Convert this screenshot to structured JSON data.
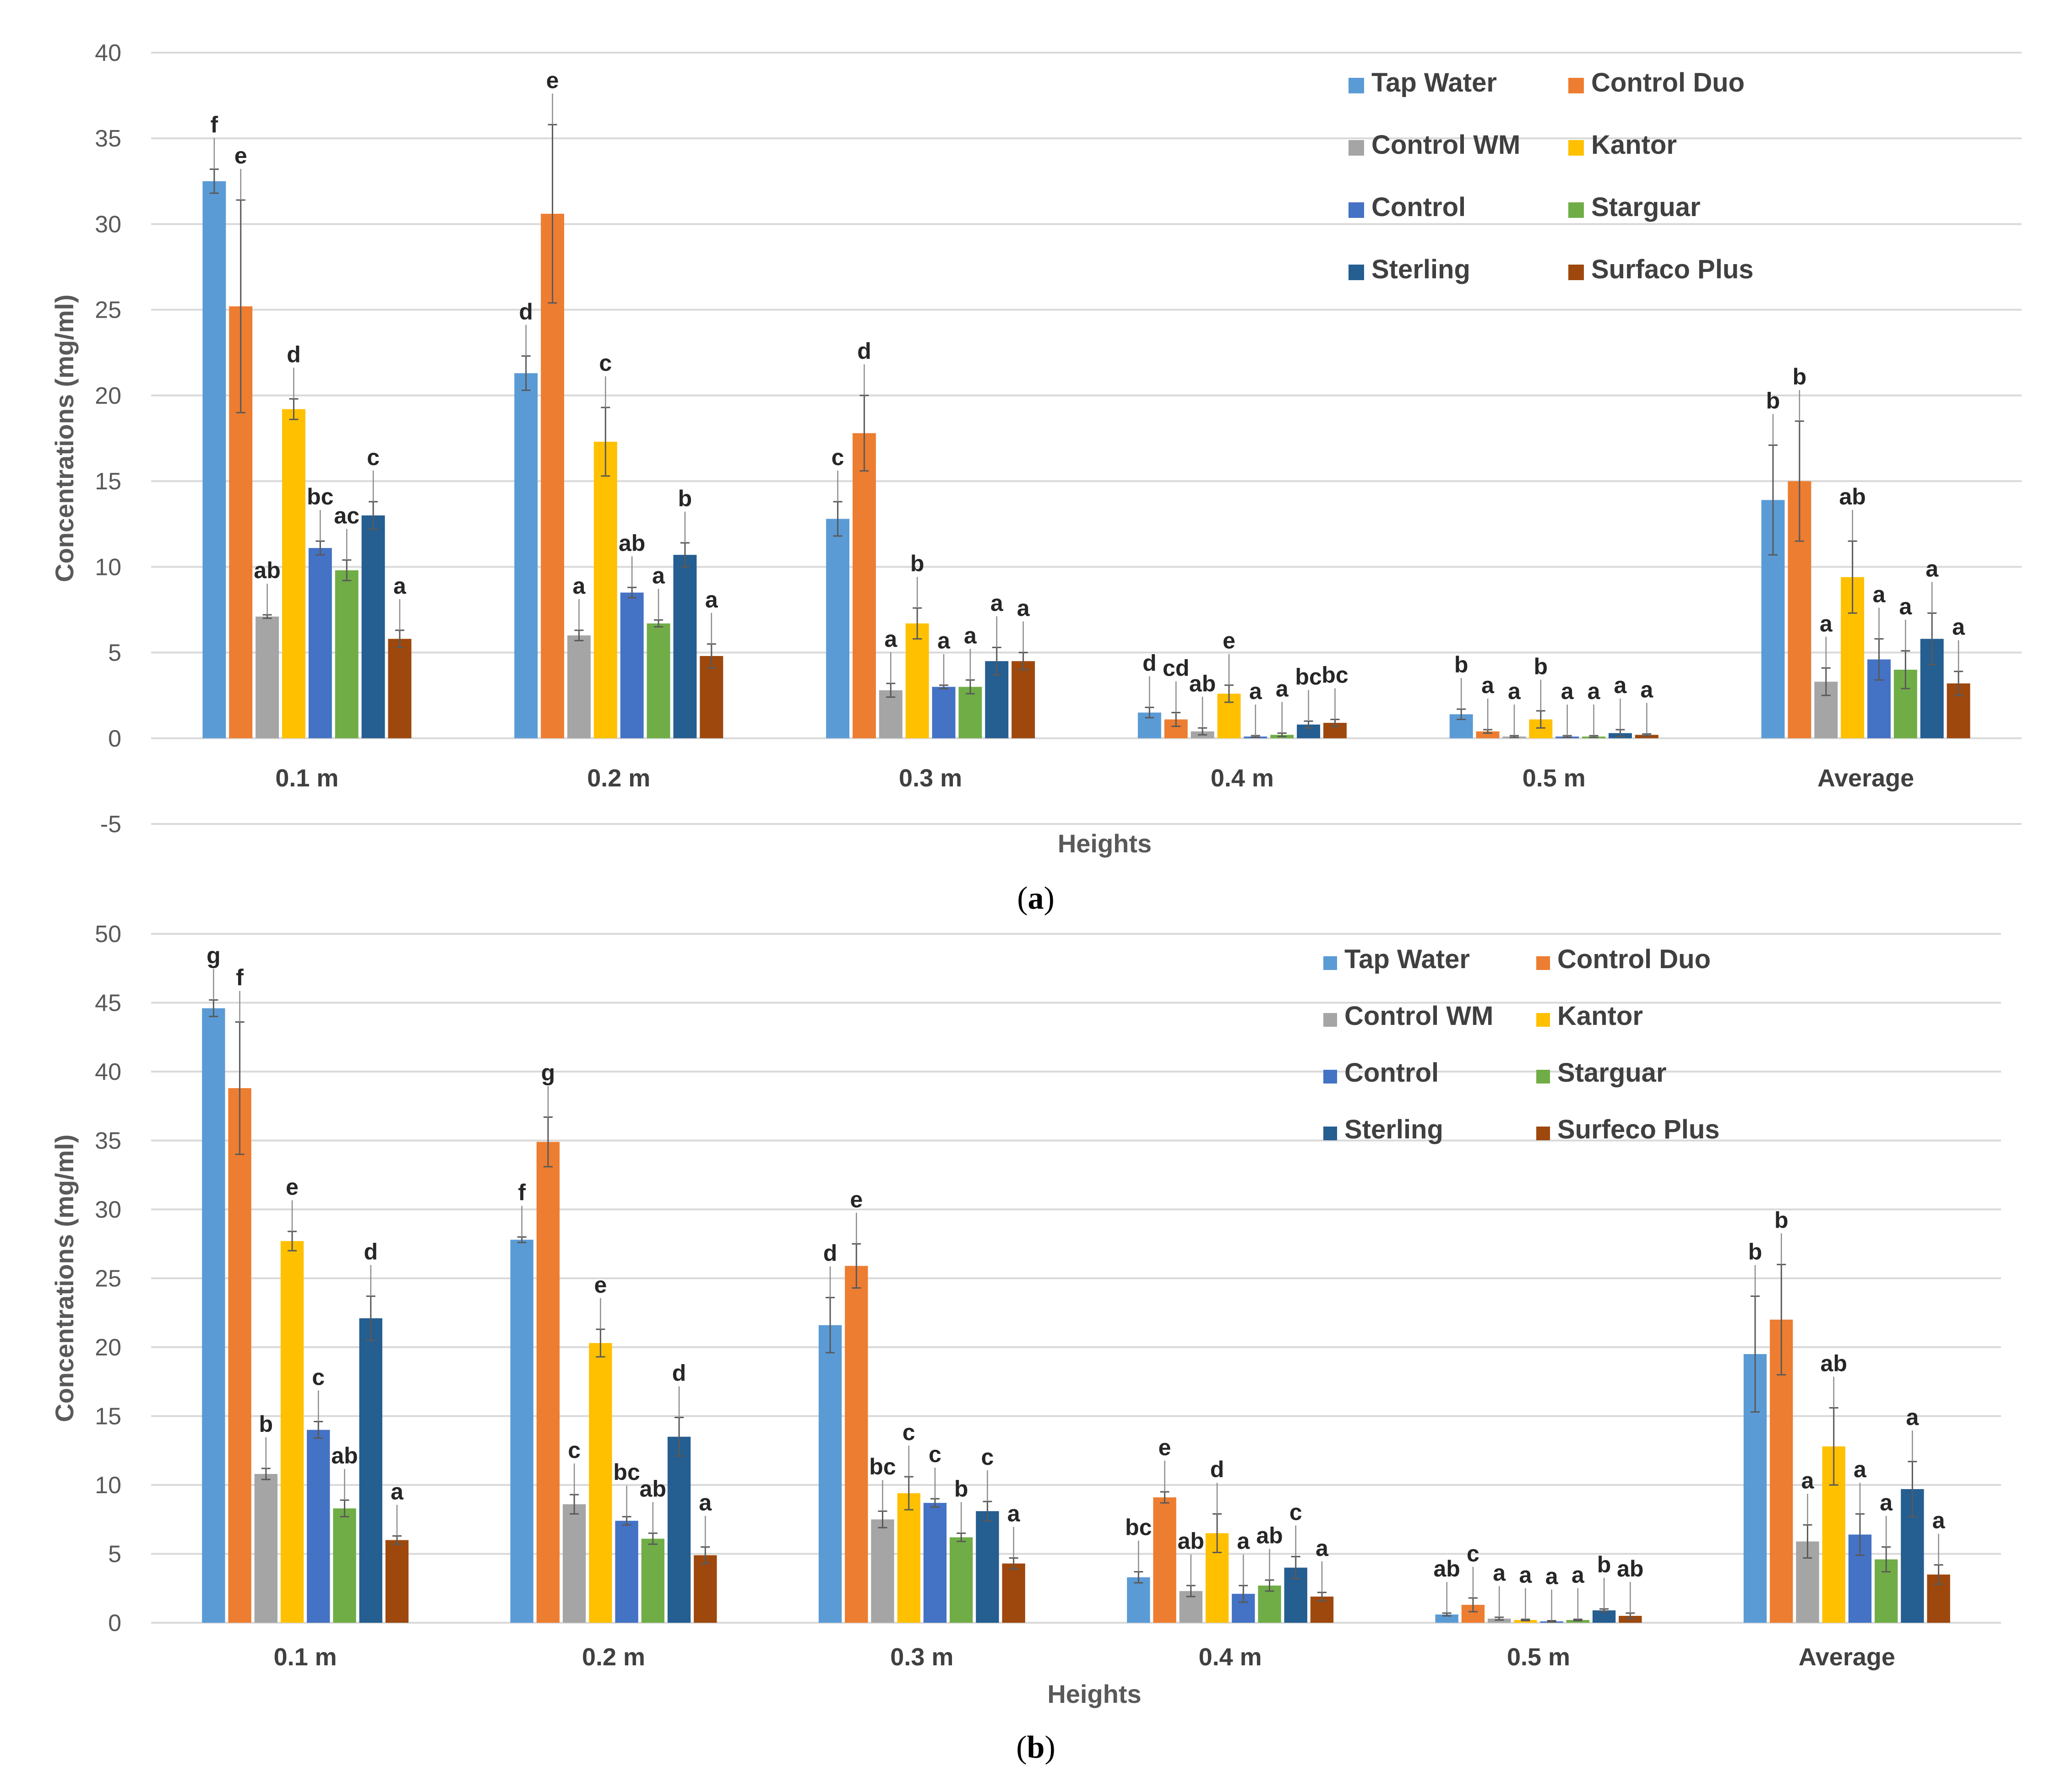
{
  "chart_data": [
    {
      "type": "bar",
      "panel_caption": "(a)",
      "panel_letter": "a",
      "title": "",
      "xlabel": "Heights",
      "ylabel": "Concentrations  (mg/ml)",
      "ylim": [
        -5,
        40
      ],
      "yticks": [
        -5,
        0,
        5,
        10,
        15,
        20,
        25,
        30,
        35,
        40
      ],
      "grid": true,
      "legend_position": "top-right",
      "categories": [
        "0.1 m",
        "0.2 m",
        "0.3 m",
        "0.4 m",
        "0.5 m",
        "Average"
      ],
      "series": [
        {
          "name": "Tap Water",
          "color": "#5b9bd5",
          "values": [
            32.5,
            21.3,
            12.8,
            1.5,
            1.4,
            13.9
          ],
          "errors": [
            0.7,
            1.0,
            1.0,
            0.3,
            0.3,
            3.2
          ],
          "labels": [
            "f",
            "d",
            "c",
            "d",
            "b",
            "b"
          ]
        },
        {
          "name": "Control Duo",
          "color": "#ed7d31",
          "values": [
            25.2,
            30.6,
            17.8,
            1.1,
            0.4,
            15.0
          ],
          "errors": [
            6.2,
            5.2,
            2.2,
            0.4,
            0.1,
            3.5
          ],
          "labels": [
            "e",
            "e",
            "d",
            "cd",
            "a",
            "b"
          ]
        },
        {
          "name": "Control WM",
          "color": "#a5a5a5",
          "values": [
            7.1,
            6.0,
            2.8,
            0.4,
            0.1,
            3.3
          ],
          "errors": [
            0.1,
            0.3,
            0.4,
            0.2,
            0.05,
            0.8
          ],
          "labels": [
            "ab",
            "a",
            "a",
            "ab",
            "a",
            "a"
          ]
        },
        {
          "name": "Kantor",
          "color": "#ffc000",
          "values": [
            19.2,
            17.3,
            6.7,
            2.6,
            1.1,
            9.4
          ],
          "errors": [
            0.6,
            2.0,
            0.9,
            0.5,
            0.5,
            2.1
          ],
          "labels": [
            "d",
            "c",
            "b",
            "e",
            "b",
            "ab"
          ]
        },
        {
          "name": "Control",
          "color": "#4472c4",
          "values": [
            11.1,
            8.5,
            3.0,
            0.1,
            0.1,
            4.6
          ],
          "errors": [
            0.4,
            0.3,
            0.1,
            0.05,
            0.05,
            1.2
          ],
          "labels": [
            "bc",
            "ab",
            "a",
            "a",
            "a",
            "a"
          ]
        },
        {
          "name": "Starguar",
          "color": "#70ad47",
          "values": [
            9.8,
            6.7,
            3.0,
            0.2,
            0.1,
            4.0
          ],
          "errors": [
            0.6,
            0.2,
            0.4,
            0.1,
            0.05,
            1.1
          ],
          "labels": [
            "ac",
            "a",
            "a",
            "a",
            "a",
            "a"
          ]
        },
        {
          "name": "Sterling",
          "color": "#255e91",
          "values": [
            13.0,
            10.7,
            4.5,
            0.8,
            0.3,
            5.8
          ],
          "errors": [
            0.8,
            0.7,
            0.8,
            0.2,
            0.2,
            1.5
          ],
          "labels": [
            "c",
            "b",
            "a",
            "bc",
            "a",
            "a"
          ]
        },
        {
          "name": "Surfaco Plus",
          "color": "#9e480e",
          "values": [
            5.8,
            4.8,
            4.5,
            0.9,
            0.2,
            3.2
          ],
          "errors": [
            0.5,
            0.7,
            0.5,
            0.2,
            0.05,
            0.7
          ],
          "labels": [
            "a",
            "a",
            "a",
            "bc",
            "a",
            "a"
          ]
        }
      ]
    },
    {
      "type": "bar",
      "panel_caption": "(b)",
      "panel_letter": "b",
      "title": "",
      "xlabel": "Heights",
      "ylabel": "Concentrations  (mg/ml)",
      "ylim": [
        0,
        50
      ],
      "yticks": [
        0,
        5,
        10,
        15,
        20,
        25,
        30,
        35,
        40,
        45,
        50
      ],
      "grid": true,
      "legend_position": "top-right",
      "categories": [
        "0.1 m",
        "0.2 m",
        "0.3 m",
        "0.4 m",
        "0.5 m",
        "Average"
      ],
      "series": [
        {
          "name": "Tap Water",
          "color": "#5b9bd5",
          "values": [
            44.6,
            27.8,
            21.6,
            3.3,
            0.6,
            19.5
          ],
          "errors": [
            0.6,
            0.2,
            2.0,
            0.4,
            0.1,
            4.2
          ],
          "labels": [
            "g",
            "f",
            "d",
            "bc",
            "ab",
            "b"
          ]
        },
        {
          "name": "Control Duo",
          "color": "#ed7d31",
          "values": [
            38.8,
            34.9,
            25.9,
            9.1,
            1.3,
            22.0
          ],
          "errors": [
            4.8,
            1.8,
            1.6,
            0.4,
            0.5,
            4.0
          ],
          "labels": [
            "f",
            "g",
            "e",
            "e",
            "c",
            "b"
          ]
        },
        {
          "name": "Control WM",
          "color": "#a5a5a5",
          "values": [
            10.8,
            8.6,
            7.5,
            2.3,
            0.3,
            5.9
          ],
          "errors": [
            0.4,
            0.7,
            0.6,
            0.4,
            0.1,
            1.2
          ],
          "labels": [
            "b",
            "c",
            "bc",
            "ab",
            "a",
            "a"
          ]
        },
        {
          "name": "Kantor",
          "color": "#ffc000",
          "values": [
            27.7,
            20.3,
            9.4,
            6.5,
            0.2,
            12.8
          ],
          "errors": [
            0.7,
            1.0,
            1.2,
            1.4,
            0.05,
            2.8
          ],
          "labels": [
            "e",
            "e",
            "c",
            "d",
            "a",
            "ab"
          ]
        },
        {
          "name": "Control",
          "color": "#4472c4",
          "values": [
            14.0,
            7.4,
            8.7,
            2.1,
            0.1,
            6.4
          ],
          "errors": [
            0.6,
            0.3,
            0.3,
            0.6,
            0.05,
            1.5
          ],
          "labels": [
            "c",
            "bc",
            "c",
            "a",
            "a",
            "a"
          ]
        },
        {
          "name": "Starguar",
          "color": "#70ad47",
          "values": [
            8.3,
            6.1,
            6.2,
            2.7,
            0.2,
            4.6
          ],
          "errors": [
            0.6,
            0.4,
            0.3,
            0.4,
            0.05,
            0.9
          ],
          "labels": [
            "ab",
            "ab",
            "b",
            "ab",
            "a",
            "a"
          ]
        },
        {
          "name": "Sterling",
          "color": "#255e91",
          "values": [
            22.1,
            13.5,
            8.1,
            4.0,
            0.9,
            9.7
          ],
          "errors": [
            1.6,
            1.4,
            0.7,
            0.8,
            0.1,
            2.0
          ],
          "labels": [
            "d",
            "d",
            "c",
            "c",
            "b",
            "a"
          ]
        },
        {
          "name": "Surfeco Plus",
          "color": "#9e480e",
          "values": [
            6.0,
            4.9,
            4.3,
            1.9,
            0.5,
            3.5
          ],
          "errors": [
            0.3,
            0.6,
            0.4,
            0.3,
            0.2,
            0.7
          ],
          "labels": [
            "a",
            "a",
            "a",
            "a",
            "ab",
            "a"
          ]
        }
      ]
    }
  ]
}
